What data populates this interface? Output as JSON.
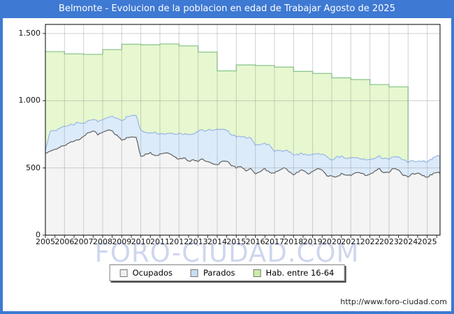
{
  "header": {
    "title": "Belmonte - Evolucion de la poblacion en edad de Trabajar Agosto de 2025"
  },
  "watermark": {
    "text": "FORO-CIUDAD.COM"
  },
  "footer": {
    "url": "http://www.foro-ciudad.com"
  },
  "colors": {
    "frame_blue": "#3e79d3",
    "grid_overlay": "#9a9a9a",
    "plot_border": "#000000",
    "axis_text": "#111111",
    "watermark_text": "#c3cdeb"
  },
  "legend": {
    "items": [
      {
        "label": "Ocupados",
        "swatch": "#f0f0f0"
      },
      {
        "label": "Parados",
        "swatch": "#c9def5"
      },
      {
        "label": "Hab. entre 16-64",
        "swatch": "#cdeda6"
      }
    ]
  },
  "chart_data": {
    "type": "area",
    "title": "Belmonte - Evolucion de la poblacion en edad de Trabajar Agosto de 2025",
    "xlabel": "",
    "ylabel": "",
    "ylim": [
      0,
      1550
    ],
    "grid": true,
    "legend_position": "bottom",
    "y_ticks": [
      {
        "value": 0,
        "label": "0"
      },
      {
        "value": 500,
        "label": "500"
      },
      {
        "value": 1000,
        "label": "1.000"
      },
      {
        "value": 1500,
        "label": "1.500"
      }
    ],
    "x_tick_years": [
      2005,
      2006,
      2007,
      2008,
      2009,
      2010,
      2011,
      2012,
      2013,
      2014,
      2015,
      2016,
      2017,
      2018,
      2019,
      2020,
      2021,
      2022,
      2023,
      2024,
      2025
    ],
    "x_end": 2025.67,
    "series": [
      {
        "name": "Ocupados",
        "kind": "area",
        "stacking": "base",
        "color_fill": "#f4f4f4",
        "color_line": "#5f5f5f",
        "x_start": 2005,
        "x_step": 0.25,
        "values": [
          610,
          622,
          638,
          652,
          668,
          688,
          702,
          712,
          738,
          762,
          775,
          748,
          765,
          786,
          772,
          742,
          705,
          722,
          736,
          728,
          582,
          601,
          612,
          592,
          602,
          616,
          606,
          582,
          562,
          576,
          548,
          556,
          552,
          566,
          542,
          532,
          522,
          546,
          552,
          518,
          502,
          512,
          482,
          492,
          458,
          476,
          492,
          466,
          462,
          482,
          502,
          472,
          452,
          472,
          486,
          456,
          468,
          496,
          482,
          442,
          436,
          430,
          456,
          446,
          442,
          462,
          466,
          446,
          452,
          476,
          492,
          462,
          466,
          500,
          482,
          446,
          432,
          456,
          466,
          442,
          432,
          452,
          466
        ]
      },
      {
        "name": "Parados",
        "kind": "area",
        "stacking": "on_ocupados",
        "color_fill": "#dcebfa",
        "color_line": "#96b7e7",
        "x_start": 2005,
        "x_step": 0.25,
        "values": [
          22,
          148,
          143,
          140,
          140,
          130,
          124,
          128,
          96,
          90,
          84,
          95,
          96,
          94,
          110,
          126,
          142,
          156,
          160,
          165,
          196,
          162,
          150,
          172,
          152,
          142,
          152,
          166,
          192,
          176,
          200,
          190,
          226,
          214,
          236,
          246,
          264,
          240,
          230,
          226,
          234,
          224,
          246,
          230,
          216,
          200,
          186,
          200,
          162,
          146,
          126,
          150,
          146,
          130,
          120,
          140,
          128,
          108,
          116,
          140,
          116,
          146,
          130,
          124,
          130,
          114,
          106,
          114,
          110,
          96,
          90,
          104,
          100,
          86,
          96,
          114,
          110,
          96,
          90,
          104,
          116,
          110,
          124
        ]
      },
      {
        "name": "Hab. entre 16-64",
        "kind": "step-area",
        "stacking": "none",
        "color_fill": "#e7f7cf",
        "color_line": "#8bc98d",
        "years": [
          2005,
          2006,
          2007,
          2008,
          2009,
          2010,
          2011,
          2012,
          2013,
          2014,
          2015,
          2016,
          2017,
          2018,
          2019,
          2020,
          2021,
          2022,
          2023
        ],
        "values": [
          1365,
          1348,
          1345,
          1380,
          1420,
          1416,
          1422,
          1408,
          1362,
          1222,
          1266,
          1262,
          1250,
          1218,
          1203,
          1170,
          1157,
          1120,
          1103
        ],
        "ends_at": 2024
      }
    ]
  }
}
